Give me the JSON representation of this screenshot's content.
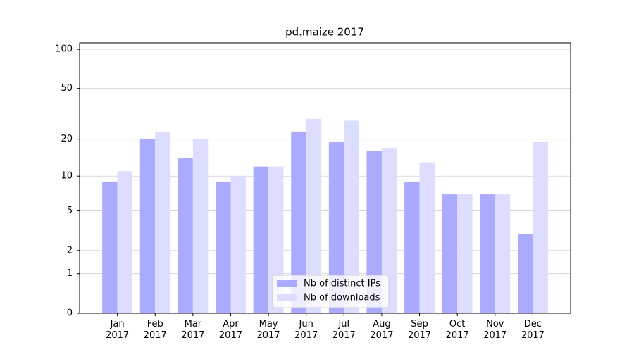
{
  "chart_data": {
    "type": "bar",
    "title": "pd.maize 2017",
    "categories": [
      "Jan\n2017",
      "Feb\n2017",
      "Mar\n2017",
      "Apr\n2017",
      "May\n2017",
      "Jun\n2017",
      "Jul\n2017",
      "Aug\n2017",
      "Sep\n2017",
      "Oct\n2017",
      "Nov\n2017",
      "Dec\n2017"
    ],
    "series": [
      {
        "name": "Nb of distinct IPs",
        "color": "#aaaaff",
        "values": [
          9,
          20,
          14,
          9,
          12,
          23,
          19,
          16,
          9,
          7,
          7,
          3
        ]
      },
      {
        "name": "Nb of downloads",
        "color": "#ddddff",
        "values": [
          11,
          23,
          20,
          10,
          12,
          29,
          28,
          17,
          13,
          7,
          7,
          19
        ]
      }
    ],
    "yscale": "log1p",
    "ylim": [
      0,
      112
    ],
    "yticks": [
      0,
      1,
      2,
      5,
      10,
      20,
      50,
      100
    ],
    "grid": true,
    "legend": "lower center"
  }
}
